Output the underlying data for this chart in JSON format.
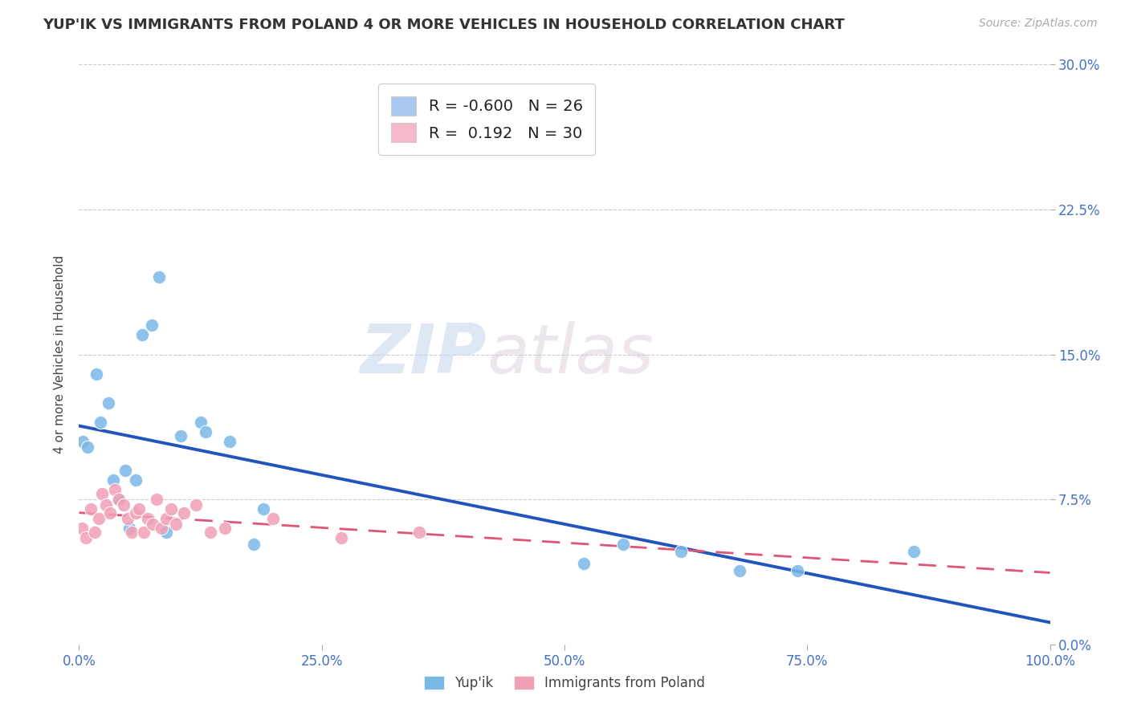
{
  "title": "YUP'IK VS IMMIGRANTS FROM POLAND 4 OR MORE VEHICLES IN HOUSEHOLD CORRELATION CHART",
  "source": "Source: ZipAtlas.com",
  "ylabel": "4 or more Vehicles in Household",
  "xlim": [
    0,
    100
  ],
  "ylim": [
    0,
    30
  ],
  "yticks": [
    0,
    7.5,
    15.0,
    22.5,
    30.0
  ],
  "xticks": [
    0,
    25,
    50,
    75,
    100
  ],
  "xtick_labels": [
    "0.0%",
    "25.0%",
    "50.0%",
    "75.0%",
    "100.0%"
  ],
  "ytick_labels": [
    "0.0%",
    "7.5%",
    "15.0%",
    "22.5%",
    "30.0%"
  ],
  "yupik_color": "#7ab8e8",
  "poland_color": "#f0a0b5",
  "yupik_line_color": "#2255bb",
  "poland_line_color": "#dd5577",
  "background_color": "#ffffff",
  "watermark_zip": "ZIP",
  "watermark_atlas": "atlas",
  "R_yupik": -0.6,
  "N_yupik": 26,
  "R_poland": 0.192,
  "N_poland": 30,
  "yupik_x": [
    0.4,
    0.9,
    1.8,
    2.2,
    3.0,
    3.5,
    4.0,
    4.8,
    5.2,
    5.8,
    6.5,
    7.5,
    8.2,
    9.0,
    10.5,
    12.5,
    13.0,
    15.5,
    18.0,
    19.0,
    52.0,
    56.0,
    62.0,
    68.0,
    74.0,
    86.0
  ],
  "yupik_y": [
    10.5,
    10.2,
    14.0,
    11.5,
    12.5,
    8.5,
    7.5,
    9.0,
    6.0,
    8.5,
    16.0,
    16.5,
    19.0,
    5.8,
    10.8,
    11.5,
    11.0,
    10.5,
    5.2,
    7.0,
    4.2,
    5.2,
    4.8,
    3.8,
    3.8,
    4.8
  ],
  "poland_x": [
    0.3,
    0.7,
    1.2,
    1.6,
    2.0,
    2.4,
    2.8,
    3.2,
    3.7,
    4.1,
    4.6,
    5.0,
    5.4,
    5.8,
    6.2,
    6.7,
    7.1,
    7.6,
    8.0,
    8.5,
    9.0,
    9.5,
    10.0,
    10.8,
    12.0,
    13.5,
    15.0,
    20.0,
    27.0,
    35.0
  ],
  "poland_y": [
    6.0,
    5.5,
    7.0,
    5.8,
    6.5,
    7.8,
    7.2,
    6.8,
    8.0,
    7.5,
    7.2,
    6.5,
    5.8,
    6.8,
    7.0,
    5.8,
    6.5,
    6.2,
    7.5,
    6.0,
    6.5,
    7.0,
    6.2,
    6.8,
    7.2,
    5.8,
    6.0,
    6.5,
    5.5,
    5.8
  ],
  "legend_patch_yupik": "#a8c8f0",
  "legend_patch_poland": "#f4b8c8",
  "legend_R_color": "#cc2222",
  "legend_N_color": "#2255bb"
}
